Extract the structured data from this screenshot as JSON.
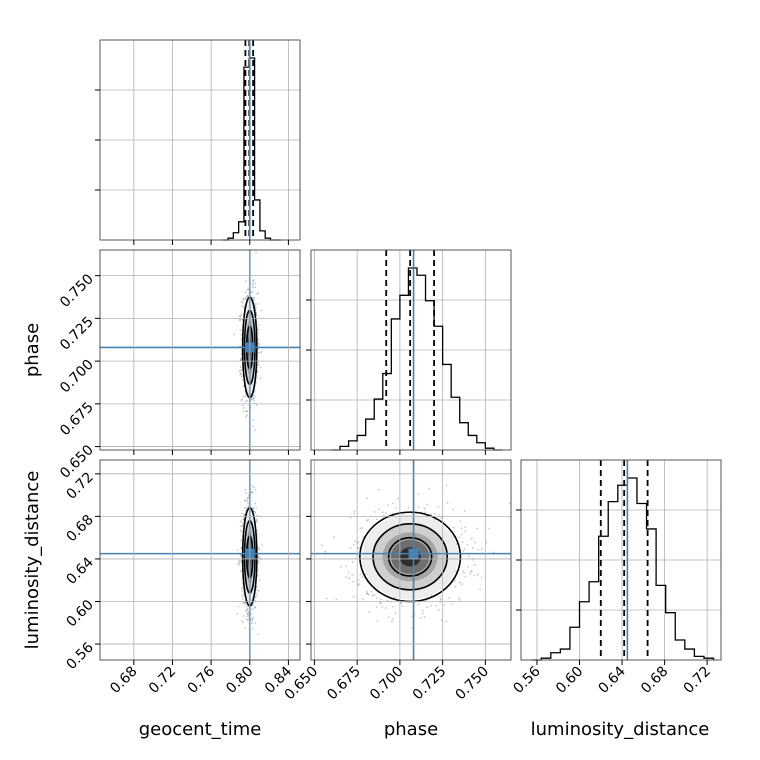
{
  "chart_data": {
    "type": "corner",
    "parameters": [
      "geocent_time",
      "phase",
      "luminosity_distance"
    ],
    "truths": {
      "geocent_time": 0.8,
      "phase": 0.708,
      "luminosity_distance": 0.645
    },
    "axis_ranges": {
      "geocent_time": [
        0.645,
        0.852
      ],
      "phase": [
        0.648,
        0.765
      ],
      "luminosity_distance": [
        0.545,
        0.733
      ]
    },
    "ticks": {
      "geocent_time": [
        "0.68",
        "0.72",
        "0.76",
        "0.80",
        "0.84"
      ],
      "phase": [
        "0.650",
        "0.675",
        "0.700",
        "0.725",
        "0.750"
      ],
      "luminosity_distance": [
        "0.56",
        "0.60",
        "0.64",
        "0.68",
        "0.72"
      ]
    },
    "quantiles": {
      "geocent_time": [
        0.7955,
        0.7995,
        0.8035
      ],
      "phase": [
        0.692,
        0.706,
        0.72
      ],
      "luminosity_distance": [
        0.62,
        0.642,
        0.664
      ]
    },
    "histograms": {
      "geocent_time": {
        "edges": [
          0.772,
          0.7775,
          0.783,
          0.7885,
          0.794,
          0.7995,
          0.805,
          0.8105,
          0.816,
          0.8215,
          0.827,
          0.8325
        ],
        "counts": [
          0.0,
          0.01,
          0.04,
          0.1,
          0.95,
          1.0,
          0.22,
          0.05,
          0.01,
          0.0,
          0.0
        ]
      },
      "phase": {
        "edges": [
          0.66,
          0.665,
          0.67,
          0.675,
          0.68,
          0.685,
          0.69,
          0.695,
          0.7,
          0.705,
          0.71,
          0.715,
          0.72,
          0.725,
          0.73,
          0.735,
          0.74,
          0.745,
          0.75,
          0.755,
          0.76
        ],
        "counts": [
          0.0,
          0.02,
          0.05,
          0.08,
          0.17,
          0.28,
          0.42,
          0.72,
          0.85,
          1.0,
          0.96,
          0.82,
          0.68,
          0.47,
          0.29,
          0.15,
          0.08,
          0.04,
          0.01,
          0.0
        ]
      },
      "luminosity_distance": {
        "edges": [
          0.555,
          0.564,
          0.573,
          0.582,
          0.591,
          0.6,
          0.609,
          0.618,
          0.627,
          0.636,
          0.645,
          0.654,
          0.663,
          0.672,
          0.681,
          0.69,
          0.699,
          0.708,
          0.717,
          0.726
        ],
        "counts": [
          0.0,
          0.01,
          0.04,
          0.06,
          0.18,
          0.32,
          0.43,
          0.68,
          0.87,
          0.96,
          1.0,
          0.86,
          0.72,
          0.41,
          0.26,
          0.11,
          0.06,
          0.02,
          0.01
        ]
      }
    },
    "pairs": [
      {
        "x": "geocent_time",
        "y": "phase",
        "mean": [
          0.8,
          0.708
        ],
        "sigma": [
          0.0035,
          0.014
        ]
      },
      {
        "x": "geocent_time",
        "y": "luminosity_distance",
        "mean": [
          0.8,
          0.642
        ],
        "sigma": [
          0.0035,
          0.022
        ]
      },
      {
        "x": "phase",
        "y": "luminosity_distance",
        "mean": [
          0.706,
          0.642
        ],
        "sigma": [
          0.014,
          0.02
        ]
      }
    ],
    "grid": true
  }
}
